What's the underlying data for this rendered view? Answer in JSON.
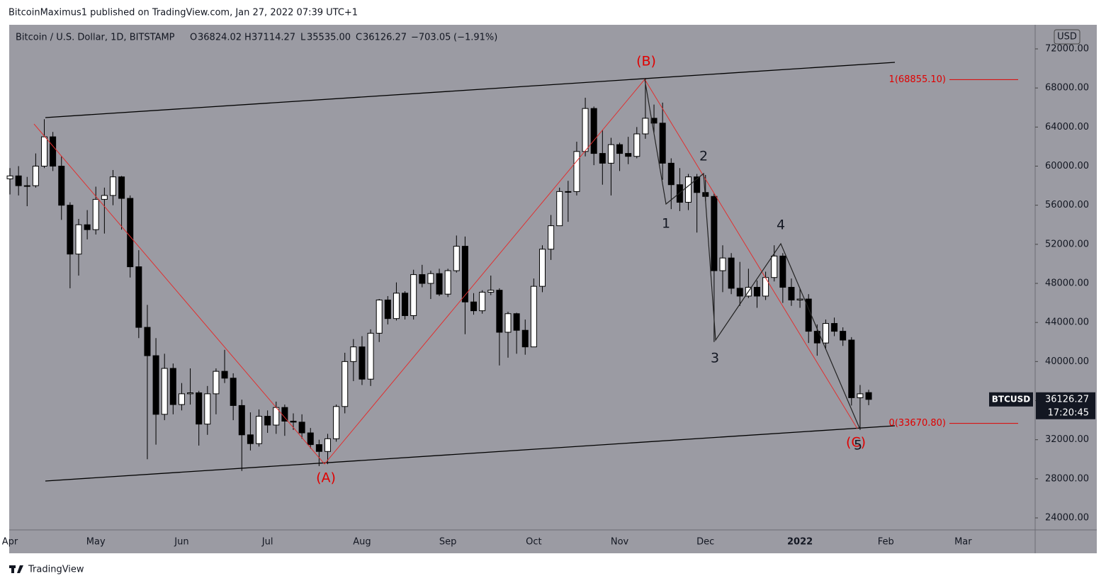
{
  "header": {
    "publisher": "BitcoinMaximus1 published on TradingView.com, Jan 27, 2022 07:39 UTC+1"
  },
  "footer": {
    "brand": "TradingView"
  },
  "chart_data": {
    "type": "candlestick",
    "title": "Bitcoin / U.S. Dollar, 1D, BITSTAMP",
    "ohlc_labels": {
      "open": "O",
      "high": "H",
      "low": "L",
      "close": "C"
    },
    "quote": {
      "open": 36824.02,
      "high": 37114.27,
      "low": {
        "value": 35535,
        "label": "35535.00"
      },
      "close": 36126.27,
      "change": {
        "value": -703.05,
        "label": "−703.05"
      },
      "change_pct": {
        "value": -1.91,
        "label": "(−1.91%)"
      }
    },
    "currency": "USD",
    "symbol": "BTCUSD",
    "countdown": "17:20:45",
    "up_color": "#ffffff",
    "down_color": "#000000",
    "categories": [
      "Apr",
      null,
      null,
      null,
      null,
      null,
      null,
      null,
      null,
      null,
      "May",
      null,
      null,
      null,
      null,
      null,
      null,
      null,
      null,
      null,
      "Jun",
      null,
      null,
      null,
      null,
      null,
      null,
      null,
      null,
      null,
      "Jul",
      null,
      null,
      null,
      null,
      null,
      null,
      null,
      null,
      null,
      null,
      "Aug",
      null,
      null,
      null,
      null,
      null,
      null,
      null,
      null,
      null,
      "Sep",
      null,
      null,
      null,
      null,
      null,
      null,
      null,
      null,
      null,
      "Oct",
      null,
      null,
      null,
      null,
      null,
      null,
      null,
      null,
      null,
      "Nov",
      null,
      null,
      null,
      null,
      null,
      null,
      null,
      null,
      null,
      "Dec",
      null,
      null,
      null,
      null,
      null,
      null,
      null,
      null,
      null,
      null,
      "2022",
      null,
      null,
      null,
      null,
      null,
      null,
      null,
      null,
      null,
      "Feb",
      null,
      null,
      null,
      null,
      null,
      null,
      null,
      null,
      "Mar",
      null,
      null,
      null,
      null,
      null,
      null,
      null,
      null,
      null
    ],
    "open": [
      58700,
      59000,
      58000,
      58000,
      60000,
      63000,
      60000,
      56000,
      51000,
      54000,
      53500,
      56600,
      57000,
      58900,
      56700,
      49700,
      43500,
      40600,
      34600,
      39300,
      35600,
      36700,
      36800,
      33600,
      36700,
      39000,
      38300,
      35500,
      32500,
      31600,
      34400,
      33500,
      35300,
      33900,
      33800,
      32700,
      31500,
      30800,
      32100,
      35400,
      40000,
      41500,
      38200,
      42900,
      46300,
      44400,
      47000,
      44700,
      48900,
      48000,
      49000,
      46900,
      49300,
      51800,
      46100,
      45200,
      47100,
      47300,
      43000,
      44900,
      43200,
      41500,
      47700,
      51500,
      53900,
      57400,
      57400,
      61500,
      65900,
      61300,
      60300,
      62200,
      61300,
      61000,
      63300,
      64900,
      64400,
      60300,
      58100,
      56300,
      58900,
      57300,
      56900,
      49300,
      50600,
      47500,
      46700,
      47600,
      46700,
      48600,
      50800,
      47600,
      46300,
      46400,
      43100,
      41900,
      43900,
      43100,
      42200,
      36300,
      36824.02,
      null,
      null,
      null,
      null,
      null,
      null,
      null,
      null,
      null,
      null,
      null,
      null,
      null,
      null,
      null,
      null,
      null,
      null,
      null,
      null
    ],
    "high": [
      59800,
      60000,
      58900,
      61300,
      64800,
      63500,
      61000,
      56300,
      54600,
      55500,
      57900,
      57800,
      59600,
      59000,
      57000,
      51400,
      45800,
      42400,
      40800,
      39800,
      37800,
      39300,
      37000,
      37500,
      39300,
      41200,
      38800,
      36100,
      34800,
      35100,
      35000,
      35900,
      35600,
      34700,
      34600,
      33200,
      32000,
      32600,
      35600,
      40900,
      42300,
      42600,
      43300,
      46400,
      46700,
      48100,
      47200,
      49400,
      49900,
      49300,
      49500,
      49500,
      52900,
      52800,
      47000,
      47300,
      48800,
      47500,
      45100,
      45000,
      44300,
      48500,
      51900,
      55000,
      57800,
      58500,
      62500,
      67000,
      66100,
      63700,
      62900,
      62400,
      63000,
      64000,
      69000,
      66300,
      66500,
      60800,
      59800,
      59200,
      59200,
      59100,
      57200,
      51900,
      51100,
      50200,
      49500,
      48300,
      49200,
      51900,
      51100,
      48500,
      47500,
      46900,
      43800,
      44300,
      44500,
      43500,
      42500,
      37600,
      37114.27,
      null,
      null,
      null,
      null,
      null,
      null,
      null,
      null,
      null,
      null,
      null,
      null,
      null,
      null,
      null,
      null,
      null,
      null,
      null,
      null
    ],
    "low": [
      57100,
      57000,
      55900,
      57800,
      59800,
      59500,
      54500,
      47500,
      48800,
      52500,
      53000,
      53100,
      56000,
      53500,
      48600,
      42400,
      30000,
      31500,
      34000,
      34600,
      35000,
      35600,
      31400,
      32500,
      34600,
      37800,
      34000,
      28800,
      30900,
      31300,
      32700,
      32600,
      32400,
      33000,
      32100,
      31100,
      29300,
      29500,
      31800,
      34700,
      38000,
      37600,
      37500,
      42000,
      43800,
      44200,
      44300,
      44300,
      47600,
      46400,
      46700,
      46600,
      49100,
      42800,
      44800,
      44900,
      46800,
      39600,
      40400,
      40800,
      40700,
      41500,
      47100,
      50400,
      53900,
      54300,
      57000,
      61000,
      60100,
      58100,
      57000,
      59500,
      60200,
      60800,
      62800,
      63400,
      58600,
      55600,
      55400,
      55500,
      53200,
      56400,
      42000,
      47100,
      46900,
      45700,
      46500,
      45500,
      46300,
      48200,
      46000,
      45700,
      45500,
      41900,
      40600,
      41300,
      42600,
      41600,
      35500,
      33000,
      35535,
      null,
      null,
      null,
      null,
      null,
      null,
      null,
      null,
      null,
      null,
      null,
      null,
      null,
      null,
      null,
      null,
      null,
      null,
      null,
      null
    ],
    "close": [
      59000,
      58000,
      58000,
      60000,
      63000,
      60000,
      56000,
      51000,
      54000,
      53500,
      56600,
      57000,
      58900,
      56700,
      49700,
      43500,
      40600,
      34600,
      39300,
      35600,
      36700,
      36800,
      33600,
      36700,
      39000,
      38300,
      35500,
      32500,
      31600,
      34400,
      33500,
      35300,
      33900,
      33800,
      32700,
      31500,
      30800,
      32100,
      35400,
      40000,
      41500,
      38200,
      42900,
      46300,
      44400,
      47000,
      44700,
      48900,
      48000,
      49000,
      46900,
      49300,
      51800,
      46100,
      45200,
      47100,
      47300,
      43000,
      44900,
      43200,
      41500,
      47700,
      51500,
      53900,
      57400,
      57400,
      61500,
      65900,
      61300,
      60300,
      62200,
      61300,
      61000,
      63300,
      64900,
      64400,
      60300,
      58100,
      56300,
      58900,
      57300,
      56900,
      49300,
      50600,
      47500,
      46700,
      47600,
      46700,
      48600,
      50800,
      47600,
      46300,
      46400,
      43100,
      41900,
      43900,
      43100,
      42200,
      36300,
      36700,
      36126.27,
      null,
      null,
      null,
      null,
      null,
      null,
      null,
      null,
      null,
      null,
      null,
      null,
      null,
      null,
      null,
      null,
      null,
      null,
      null,
      null
    ],
    "ylim": [
      22770,
      74465
    ],
    "yticks": [
      {
        "value": 24000,
        "label": "24000.00"
      },
      {
        "value": 28000,
        "label": "28000.00"
      },
      {
        "value": 32000,
        "label": "32000.00"
      },
      {
        "value": 36000,
        "label": "36000.00"
      },
      {
        "value": 40000,
        "label": "40000.00"
      },
      {
        "value": 44000,
        "label": "44000.00"
      },
      {
        "value": 48000,
        "label": "48000.00"
      },
      {
        "value": 52000,
        "label": "52000.00"
      },
      {
        "value": 56000,
        "label": "56000.00"
      },
      {
        "value": 60000,
        "label": "60000.00"
      },
      {
        "value": 64000,
        "label": "64000.00"
      },
      {
        "value": 68000,
        "label": "68000.00"
      },
      {
        "value": 72000,
        "label": "72000.00"
      }
    ],
    "fib_levels": [
      {
        "value": 68855.1,
        "label": "1(68855.10)"
      },
      {
        "value": 33670.8,
        "label": "0(33670.80)"
      }
    ],
    "waves": {
      "a": "(A)",
      "b": "(B)",
      "c": "(C)",
      "w1": "1",
      "w2": "2",
      "w3": "3",
      "w4": "4",
      "w5": "5"
    }
  }
}
